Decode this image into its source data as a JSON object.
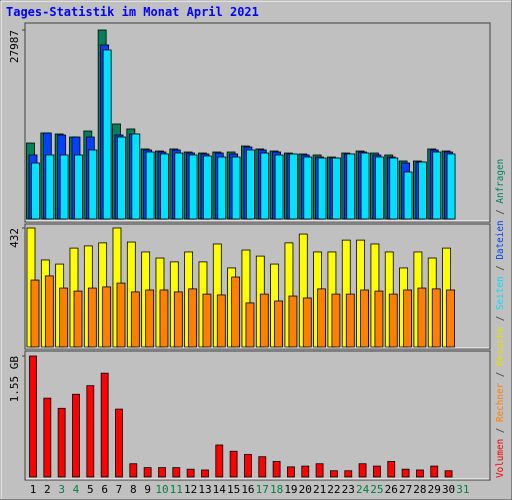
{
  "title": "Tages-Statistik im Monat April 2021",
  "legend_separator": "/",
  "chart_data": [
    {
      "type": "bar",
      "ylim": [
        0,
        27987
      ],
      "yticks": [
        27987
      ],
      "series": [
        {
          "name": "Anfragen",
          "color": "#00805c",
          "values": [
            11250,
            12740,
            12590,
            12140,
            13030,
            27987,
            14070,
            13330,
            10370,
            10070,
            10370,
            9920,
            9770,
            9920,
            9920,
            10810,
            10370,
            10070,
            9770,
            9630,
            9480,
            9180,
            9770,
            10070,
            9770,
            9480,
            8590,
            8590,
            10370,
            10070,
            null
          ]
        },
        {
          "name": "Dateien",
          "color": "#0040ff",
          "values": [
            9480,
            12740,
            12440,
            12140,
            12140,
            25770,
            12440,
            12590,
            10220,
            9920,
            10220,
            9770,
            9630,
            9770,
            9630,
            10660,
            10220,
            9920,
            9630,
            9480,
            9180,
            9030,
            9630,
            9920,
            9480,
            9180,
            8290,
            8440,
            10220,
            9920,
            null
          ]
        },
        {
          "name": "Seiten",
          "color": "#00e0ff",
          "values": [
            8290,
            9480,
            9480,
            9480,
            10220,
            25030,
            12140,
            12590,
            9920,
            9630,
            9770,
            9480,
            9330,
            9180,
            9180,
            10220,
            9770,
            9480,
            9630,
            9180,
            9030,
            9030,
            9630,
            9770,
            9180,
            9030,
            6960,
            8440,
            9920,
            9630,
            null
          ]
        }
      ]
    },
    {
      "type": "bar",
      "ylim": [
        0,
        432
      ],
      "yticks": [
        432
      ],
      "series": [
        {
          "name": "Besuche",
          "color": "#ffff00",
          "values": [
            432,
            316,
            301,
            359,
            367,
            378,
            432,
            381,
            345,
            323,
            309,
            345,
            309,
            374,
            287,
            352,
            330,
            301,
            378,
            410,
            345,
            345,
            388,
            388,
            374,
            345,
            287,
            345,
            323,
            359,
            null
          ]
        },
        {
          "name": "Rechner",
          "color": "#ff8000",
          "values": [
            243,
            258,
            214,
            203,
            214,
            218,
            232,
            200,
            207,
            207,
            200,
            211,
            192,
            189,
            254,
            160,
            192,
            167,
            185,
            178,
            211,
            192,
            192,
            207,
            203,
            192,
            207,
            214,
            211,
            207,
            null
          ]
        }
      ]
    },
    {
      "type": "bar",
      "ylim": [
        0,
        1.55
      ],
      "yticks": [
        {
          "value": 1.55,
          "label": "1.55 GB"
        }
      ],
      "categories": [
        "1",
        "2",
        "3",
        "4",
        "5",
        "6",
        "7",
        "8",
        "9",
        "10",
        "11",
        "12",
        "13",
        "14",
        "15",
        "16",
        "17",
        "18",
        "19",
        "20",
        "21",
        "22",
        "23",
        "24",
        "25",
        "26",
        "27",
        "28",
        "29",
        "30",
        "31"
      ],
      "category_colors": [
        "#000000",
        "#000000",
        "#008040",
        "#008040",
        "#000000",
        "#000000",
        "#000000",
        "#000000",
        "#000000",
        "#008040",
        "#008040",
        "#000000",
        "#000000",
        "#000000",
        "#000000",
        "#000000",
        "#008040",
        "#008040",
        "#000000",
        "#000000",
        "#000000",
        "#000000",
        "#000000",
        "#008040",
        "#008040",
        "#000000",
        "#000000",
        "#000000",
        "#000000",
        "#000000",
        "#008040"
      ],
      "series": [
        {
          "name": "Volumen",
          "color": "#ff0000",
          "values": [
            1.55,
            1.01,
            0.88,
            1.06,
            1.17,
            1.33,
            0.87,
            0.17,
            0.12,
            0.12,
            0.12,
            0.1,
            0.09,
            0.41,
            0.33,
            0.29,
            0.26,
            0.2,
            0.13,
            0.14,
            0.17,
            0.08,
            0.08,
            0.17,
            0.14,
            0.2,
            0.1,
            0.09,
            0.14,
            0.08,
            null
          ]
        }
      ]
    }
  ]
}
